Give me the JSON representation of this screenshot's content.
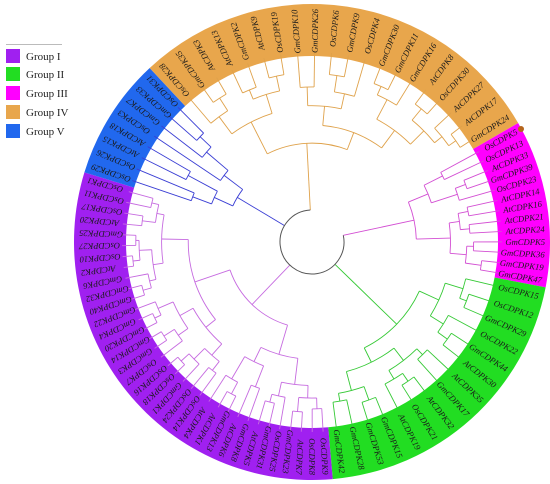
{
  "legend": {
    "items": [
      {
        "label": "Group I",
        "color": "#a020f0"
      },
      {
        "label": "Group II",
        "color": "#22dd22"
      },
      {
        "label": "Group III",
        "color": "#ff00ff"
      },
      {
        "label": "Group IV",
        "color": "#e8a64c"
      },
      {
        "label": "Group V",
        "color": "#2168ee"
      }
    ]
  },
  "tree": {
    "branch_colors": {
      "Group I": "#c66be0",
      "Group II": "#35c935",
      "Group III": "#d34fd3",
      "Group IV": "#dfa24b",
      "Group V": "#3a3ed4",
      "root": "#555555"
    },
    "groups": [
      {
        "name": "Group III",
        "leaves": [
          "OsCDPK5",
          "OsCDPK13",
          "AtCDPK33",
          "GmCDPK39",
          "OsCDPK23",
          "AtCDPK14",
          "AtCDPK16",
          "AtCDPK21",
          "AtCDPK24",
          "GmCDPK5",
          "GmCDPK36",
          "GmCDPK19",
          "GmCDPK47"
        ]
      },
      {
        "name": "Group II",
        "leaves": [
          "OsCDPK15",
          "OsCDPK12",
          "GmCDPK29",
          "OsCDPK22",
          "GmCDPK44",
          "AtCDPK30",
          "AtCDPK35",
          "GmCDPK17",
          "AtCDPK32",
          "OsCDPK21",
          "AtCDPK19",
          "GmCDPK15",
          "GmCDPK53",
          "GmCDPK28",
          "GmCDPK42"
        ]
      },
      {
        "name": "Group I",
        "leaves": [
          "OsCDPK9",
          "OsCDPK8",
          "AtCDPK7",
          "GmCDPK23",
          "OsCDPK25",
          "GmCDPK31",
          "AtCDPK5",
          "GmCDPK8",
          "AtCDPK6",
          "GmCDPK13",
          "AtCDPK1",
          "AtCDPK4",
          "OsCDPK14",
          "OsCDPK24",
          "GmCDPK1",
          "OsCDPK18",
          "OsCDPK16",
          "OsCDPK7",
          "GmCDPK3",
          "GmCDPK14",
          "GmCDPK20",
          "GmCDPK4",
          "GmCDPK22",
          "GmCDPK40",
          "GmCDPK32",
          "GmCDPK6",
          "AtCDPK2",
          "OsCDPK10",
          "OsCDPK27",
          "GmCDPK25",
          "AtCDPK20",
          "OsCDPK17",
          "OsCDPK11",
          "OsCDPK1"
        ]
      },
      {
        "name": "Group V",
        "leaves": [
          "OsCDPK29",
          "OsCDPK26",
          "AtCDPK15",
          "AtCDPK18",
          "OsCDPK3",
          "GmCDPK7",
          "GmCDPK33",
          "OsCDPK31"
        ]
      },
      {
        "name": "Group IV",
        "leaves": [
          "OsCDPK28",
          "GmCDPK35",
          "AtCDPK3",
          "AtCDPK13",
          "GmCDPK2",
          "AtCDPK9",
          "OsCDPK19",
          "GmCDPK10",
          "GmCDPK26",
          "OsCDPK6",
          "GmCDPK9",
          "OsCDPK4",
          "GmCDPK30",
          "GmCDPK11",
          "GmCDPK16",
          "AtCDPK8",
          "OsCDPK30",
          "AtCDPK27",
          "AtCDPK17",
          "GmCDPK24"
        ]
      }
    ]
  }
}
